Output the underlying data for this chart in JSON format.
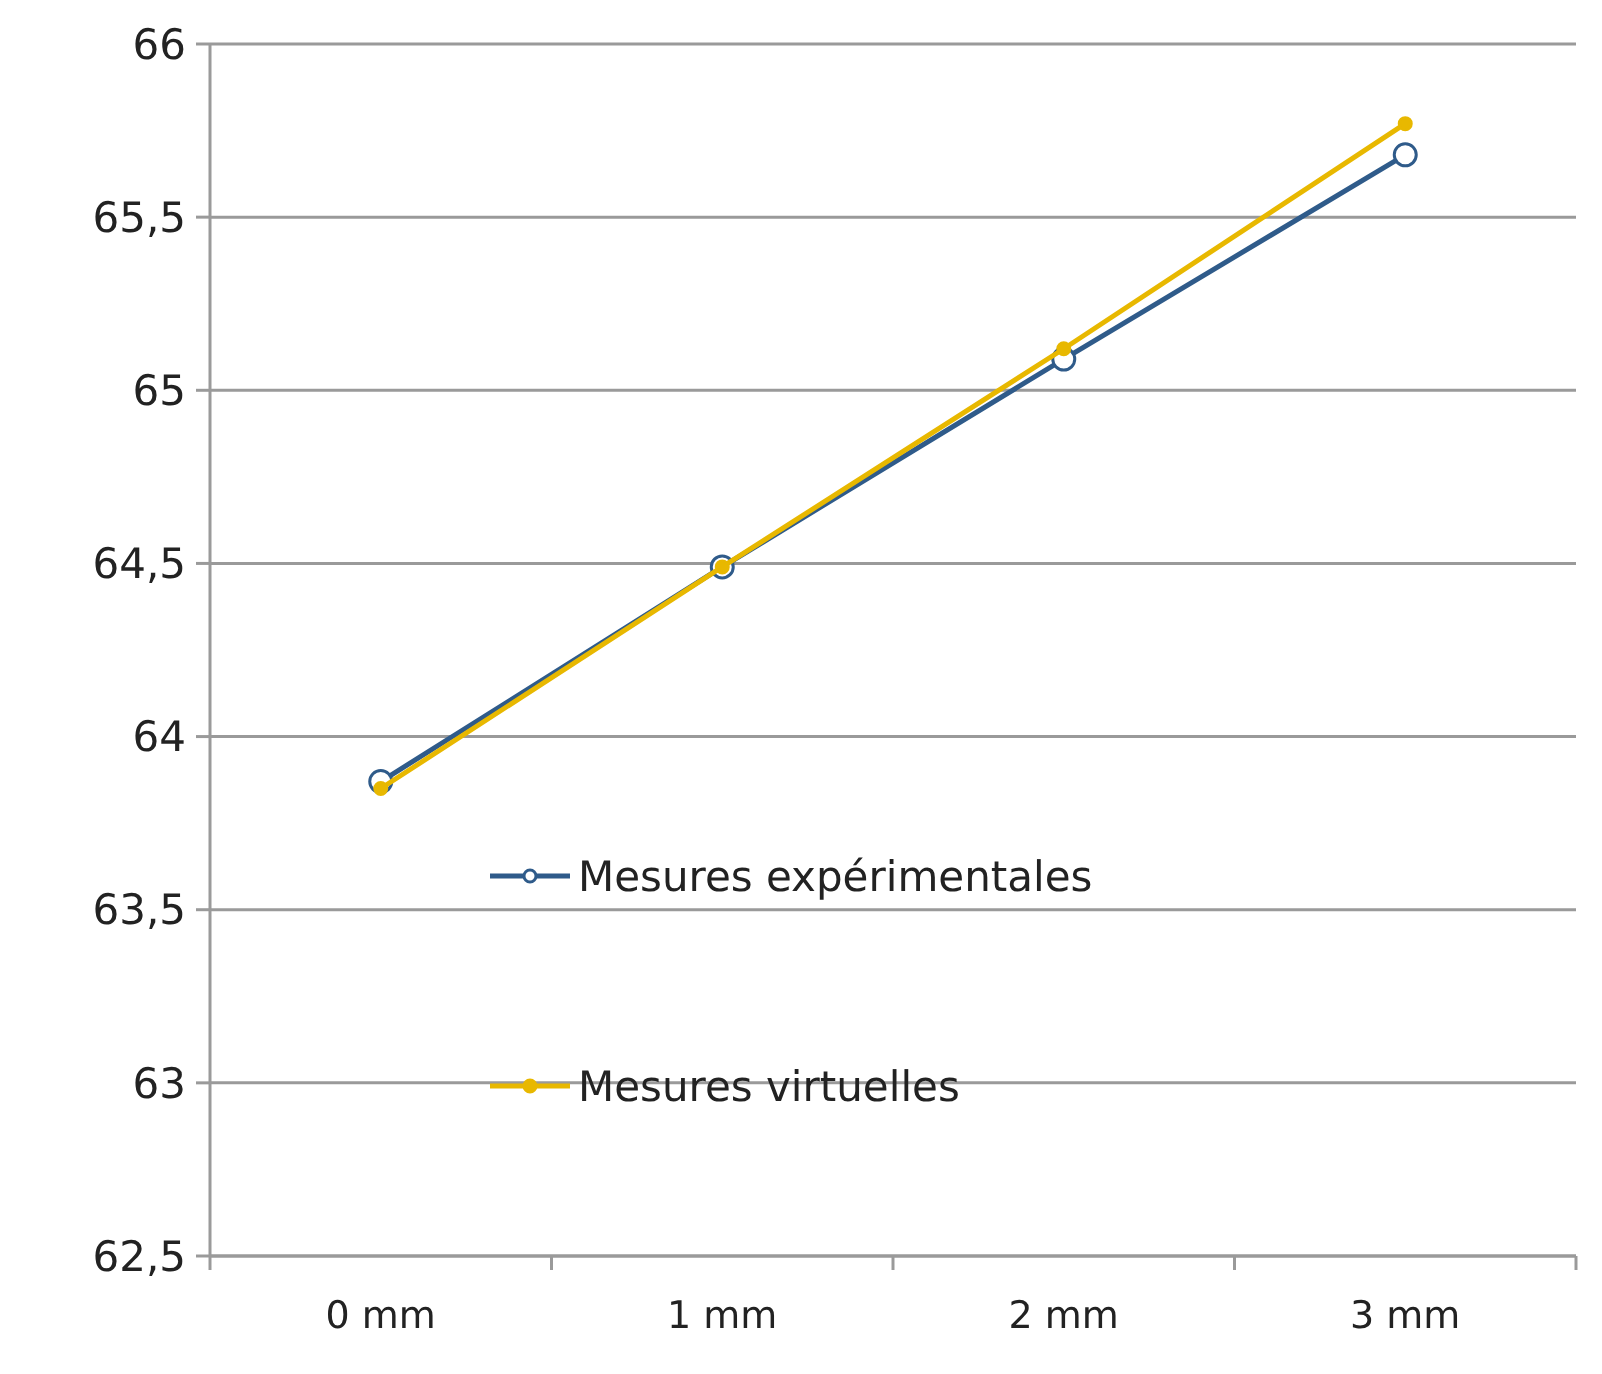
{
  "chart_data": {
    "type": "line",
    "categories": [
      "0 mm",
      "1 mm",
      "2 mm",
      "3 mm"
    ],
    "series": [
      {
        "name": "Mesures expérimentales",
        "color": "#2f5b8a",
        "values": [
          63.87,
          64.49,
          65.09,
          65.68
        ]
      },
      {
        "name": "Mesures virtuelles",
        "color": "#e8b800",
        "values": [
          63.85,
          64.49,
          65.12,
          65.77
        ]
      }
    ],
    "ylim": [
      62.5,
      66
    ],
    "yticks": [
      {
        "value": 62.5,
        "label": "62,5"
      },
      63,
      {
        "value": 63.5,
        "label": "63,5"
      },
      64,
      {
        "value": 64.5,
        "label": "64,5"
      },
      65,
      {
        "value": 65.5,
        "label": "65,5"
      },
      66
    ],
    "grid": "y",
    "legend": "bottom",
    "marker": "circle",
    "line_style": "solid"
  }
}
